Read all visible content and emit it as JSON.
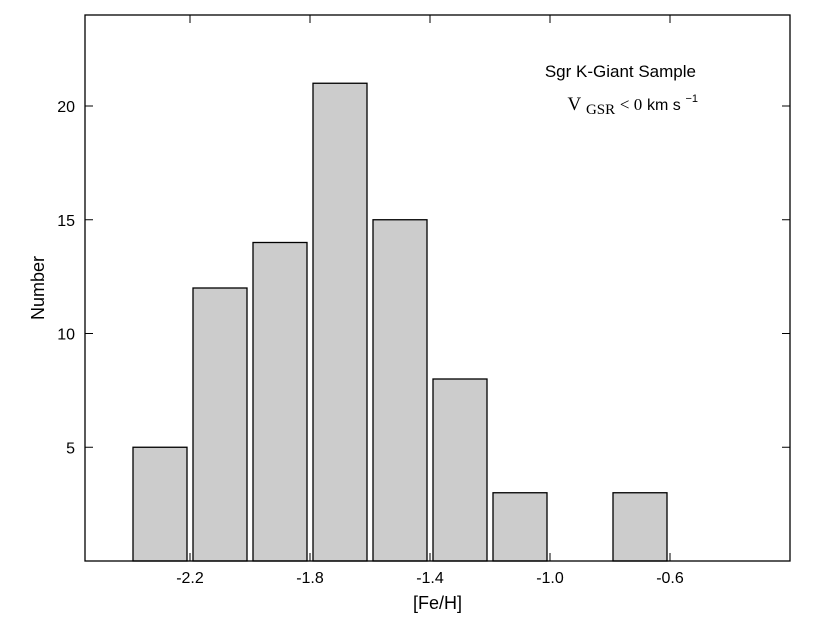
{
  "chart_data": {
    "type": "bar",
    "xlabel": "[Fe/H]",
    "ylabel": "Number",
    "xlim": [
      -2.55,
      -0.2
    ],
    "ylim": [
      0,
      24
    ],
    "grid": false,
    "bins": [
      {
        "center": -2.3,
        "value": 5
      },
      {
        "center": -2.1,
        "value": 12
      },
      {
        "center": -1.9,
        "value": 14
      },
      {
        "center": -1.7,
        "value": 21
      },
      {
        "center": -1.5,
        "value": 15
      },
      {
        "center": -1.3,
        "value": 8
      },
      {
        "center": -1.1,
        "value": 3
      },
      {
        "center": -0.9,
        "value": 0
      },
      {
        "center": -0.7,
        "value": 3
      }
    ],
    "bin_width": 0.2,
    "bar_fill": "#cccccc",
    "bar_edge": "#000000",
    "x_ticks": [
      {
        "value": -2.2,
        "label": "-2.2"
      },
      {
        "value": -1.8,
        "label": "-1.8"
      },
      {
        "value": -1.4,
        "label": "-1.4"
      },
      {
        "value": -1.0,
        "label": "-1.0"
      },
      {
        "value": -0.6,
        "label": "-0.6"
      }
    ],
    "y_ticks": [
      {
        "value": 5,
        "label": "5"
      },
      {
        "value": 10,
        "label": "10"
      },
      {
        "value": 15,
        "label": "15"
      },
      {
        "value": 20,
        "label": "20"
      }
    ],
    "annotations": {
      "sample_label": "Sgr K-Giant Sample",
      "velocity_prefix": "V",
      "velocity_subscript": "GSR",
      "velocity_relation": " < 0",
      "velocity_units": " km s",
      "velocity_exponent": "−1"
    }
  }
}
